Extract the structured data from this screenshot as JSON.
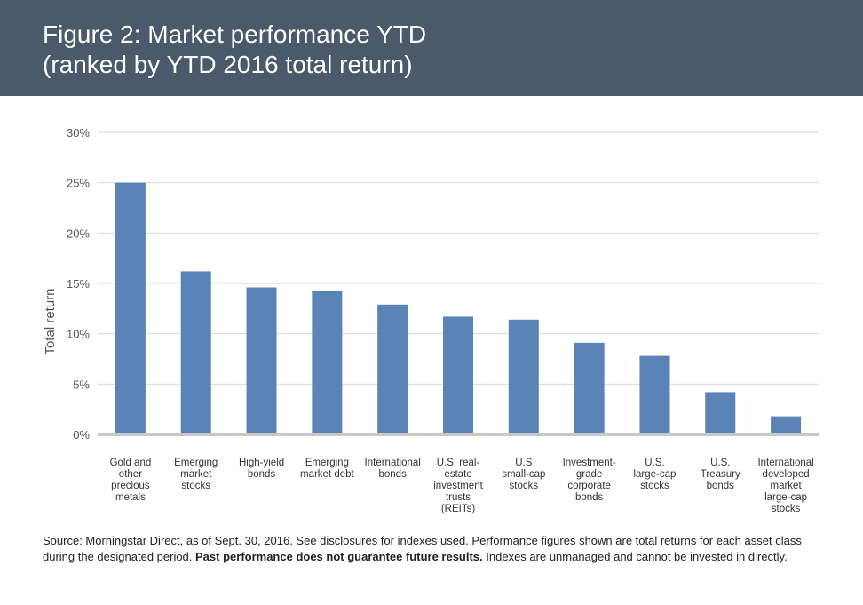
{
  "header": {
    "title_line1": "Figure 2: Market performance YTD",
    "title_line2": "(ranked by YTD 2016 total return)",
    "background": "#4a5a6a"
  },
  "chart_data": {
    "type": "bar",
    "ylabel": "Total return",
    "xlabel": "",
    "ylim": [
      0,
      30
    ],
    "yticks": [
      "0%",
      "5%",
      "10%",
      "15%",
      "20%",
      "25%",
      "30%"
    ],
    "ytick_values": [
      0,
      5,
      10,
      15,
      20,
      25,
      30
    ],
    "grid": true,
    "bar_color": "#5b84b6",
    "categories": [
      [
        "Gold and",
        "other",
        "precious",
        "metals"
      ],
      [
        "Emerging",
        "market",
        "stocks"
      ],
      [
        "High-yield",
        "bonds"
      ],
      [
        "Emerging",
        "market debt"
      ],
      [
        "International",
        "bonds"
      ],
      [
        "U.S. real-",
        "estate",
        "investment",
        "trusts",
        "(REITs)"
      ],
      [
        "U.S",
        "small-cap",
        "stocks"
      ],
      [
        "Investment-",
        "grade",
        "corporate",
        "bonds"
      ],
      [
        "U.S.",
        "large-cap",
        "stocks"
      ],
      [
        "U.S.",
        "Treasury",
        "bonds"
      ],
      [
        "International",
        "developed",
        "market",
        "large-cap",
        "stocks"
      ]
    ],
    "values": [
      25.0,
      16.2,
      14.6,
      14.3,
      12.9,
      11.7,
      11.4,
      9.1,
      7.8,
      4.2,
      1.8
    ]
  },
  "footer": {
    "source_text": "Source: Morningstar Direct, as of Sept. 30, 2016. See disclosures for indexes used. Performance figures shown are total returns for each asset class during the designated period. ",
    "bold_text": "Past performance does not guarantee future results.",
    "tail_text": " Indexes are unmanaged and cannot be invested in directly."
  }
}
